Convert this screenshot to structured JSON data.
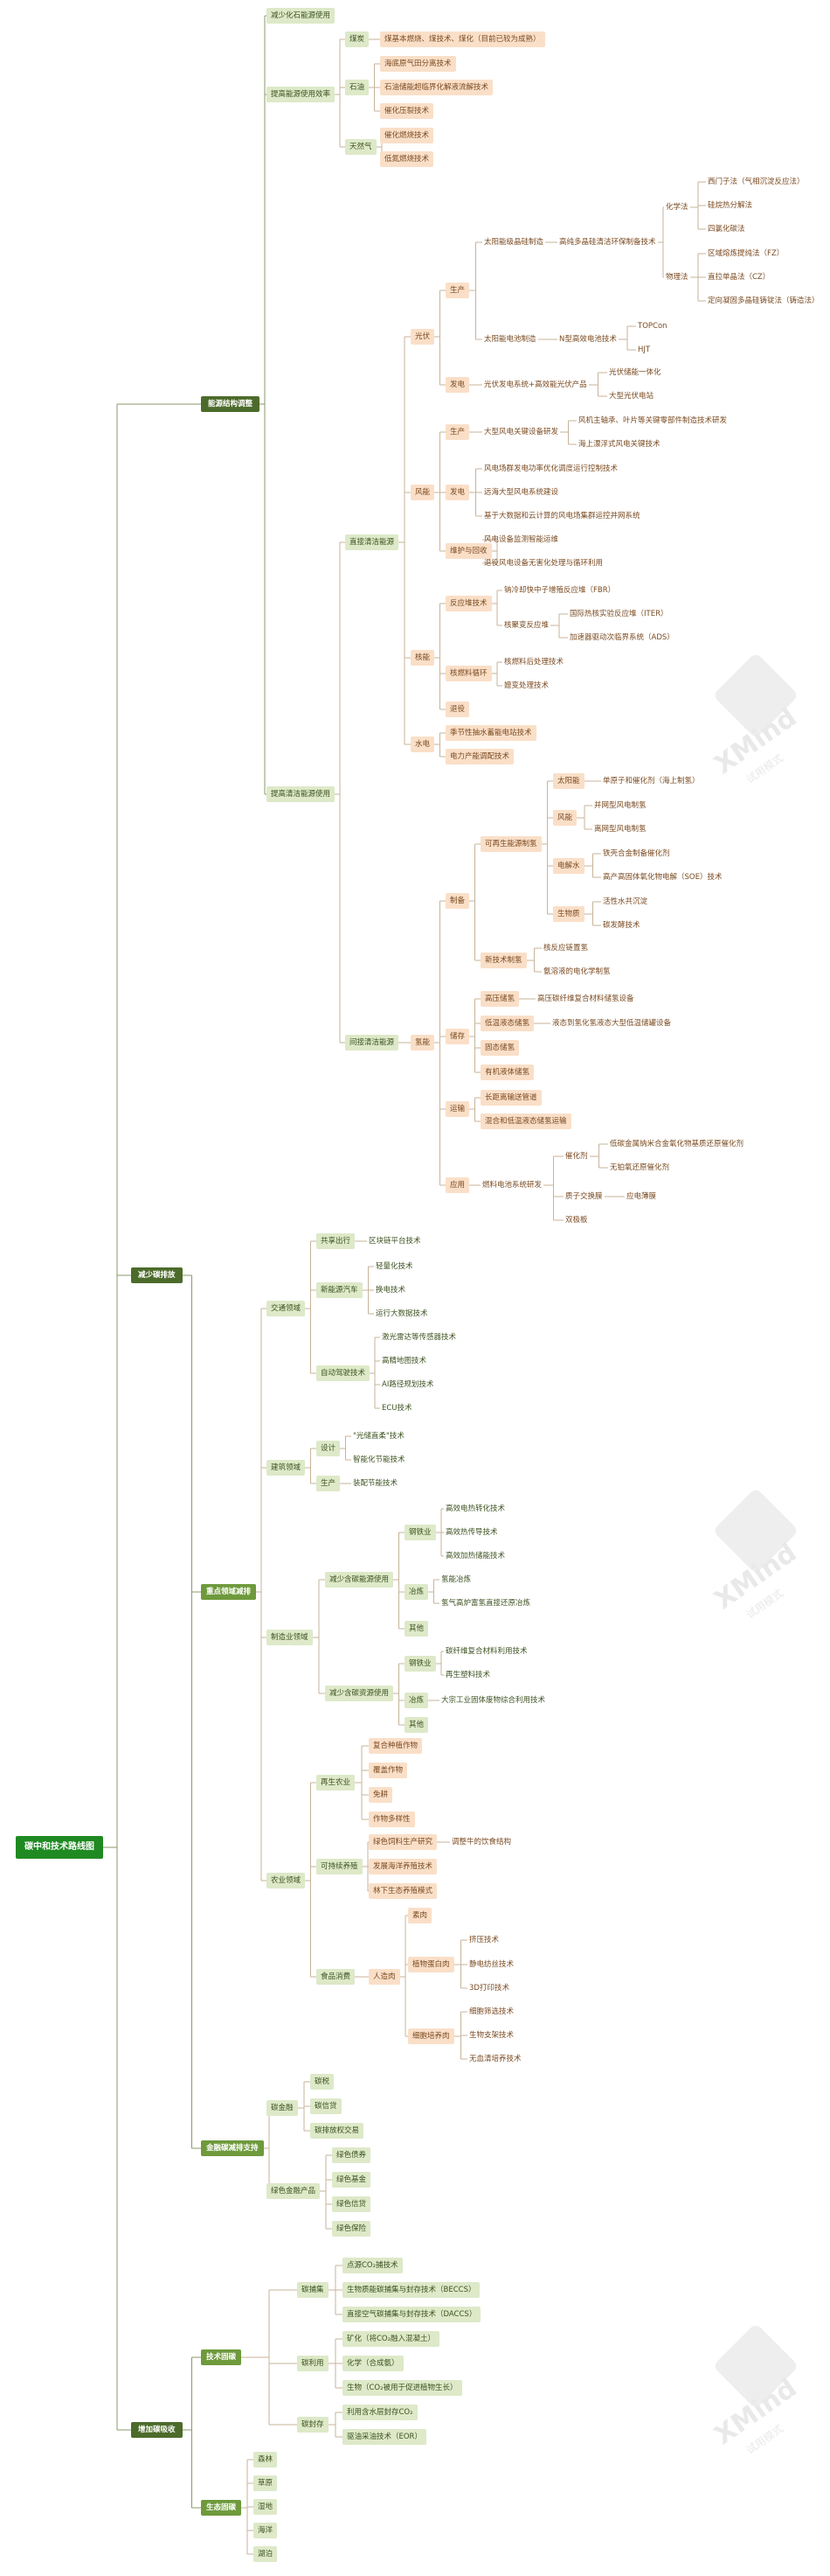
{
  "watermark": {
    "brand": "XMind",
    "sub": "试用模式"
  },
  "nodes": [
    {
      "id": "root",
      "text": "碳中和技术路线图",
      "lvl": 0
    },
    {
      "id": "A",
      "text": "能源结构调整",
      "lvl": 1,
      "parent": "root"
    },
    {
      "id": "B",
      "text": "减少碳排放",
      "lvl": 1,
      "parent": "root"
    },
    {
      "id": "C",
      "text": "增加碳吸收",
      "lvl": 1,
      "parent": "root"
    },
    {
      "id": "A1",
      "text": "减少化石能源使用",
      "parent": "A",
      "style": "box-green"
    },
    {
      "id": "A2",
      "text": "提高能源使用效率",
      "parent": "A",
      "style": "box-green"
    },
    {
      "id": "A2a",
      "text": "煤炭",
      "parent": "A2",
      "style": "box-green"
    },
    {
      "id": "A2a1",
      "text": "煤基本燃烧、煤技术、煤化（目前已较为成熟）",
      "parent": "A2a",
      "style": "box-orange"
    },
    {
      "id": "A2b",
      "text": "石油",
      "parent": "A2",
      "style": "box-green"
    },
    {
      "id": "A2b1",
      "text": "海底原气田分离技术",
      "parent": "A2b",
      "style": "box-orange"
    },
    {
      "id": "A2b2",
      "text": "石油储能超临界化解液流解技术",
      "parent": "A2b",
      "style": "box-orange"
    },
    {
      "id": "A2b3",
      "text": "催化压裂技术",
      "parent": "A2b",
      "style": "box-orange"
    },
    {
      "id": "A2c",
      "text": "天然气",
      "parent": "A2",
      "style": "box-green"
    },
    {
      "id": "A2c1",
      "text": "催化燃烧技术",
      "parent": "A2c",
      "style": "box-orange"
    },
    {
      "id": "A2c2",
      "text": "低氮燃烧技术",
      "parent": "A2c",
      "style": "box-orange"
    },
    {
      "id": "A3",
      "text": "提高清洁能源使用",
      "parent": "A",
      "style": "box-green"
    },
    {
      "id": "A3a",
      "text": "直接清洁能源",
      "parent": "A3",
      "style": "box-green"
    },
    {
      "id": "PV",
      "text": "光伏",
      "parent": "A3a",
      "style": "box-orange"
    },
    {
      "id": "PVa",
      "text": "生产",
      "parent": "PV",
      "style": "box-orange"
    },
    {
      "id": "PVa1",
      "text": "太阳能级晶硅制造",
      "parent": "PVa",
      "style": "plain"
    },
    {
      "id": "PVa1a",
      "text": "高纯多晶硅清洁环保制备技术",
      "parent": "PVa1",
      "style": "plain"
    },
    {
      "id": "PVx",
      "text": "化学法",
      "parent": "PVa1a",
      "style": "plain"
    },
    {
      "id": "PVx1",
      "text": "西门子法（气相沉淀反应法）",
      "parent": "PVx",
      "style": "plain"
    },
    {
      "id": "PVx2",
      "text": "硅烷热分解法",
      "parent": "PVx",
      "style": "plain"
    },
    {
      "id": "PVx3",
      "text": "四氯化碳法",
      "parent": "PVx",
      "style": "plain"
    },
    {
      "id": "PVy",
      "text": "物理法",
      "parent": "PVa1a",
      "style": "plain"
    },
    {
      "id": "PVy1",
      "text": "区域熔炼提纯法（FZ）",
      "parent": "PVy",
      "style": "plain"
    },
    {
      "id": "PVy2",
      "text": "直拉单晶法（CZ）",
      "parent": "PVy",
      "style": "plain"
    },
    {
      "id": "PVy3",
      "text": "定向凝固多晶硅铸锭法（铸造法）",
      "parent": "PVy",
      "style": "plain"
    },
    {
      "id": "PVa2",
      "text": "太阳能电池制造",
      "parent": "PVa",
      "style": "plain"
    },
    {
      "id": "PVa2a",
      "text": "N型高效电池技术",
      "parent": "PVa2",
      "style": "plain"
    },
    {
      "id": "PVa2a1",
      "text": "TOPCon",
      "parent": "PVa2a",
      "style": "plain"
    },
    {
      "id": "PVa2a2",
      "text": "HJT",
      "parent": "PVa2a",
      "style": "plain"
    },
    {
      "id": "PVb",
      "text": "发电",
      "parent": "PV",
      "style": "box-orange"
    },
    {
      "id": "PVb1",
      "text": "光伏发电系统+高效能光伏产品",
      "parent": "PVb",
      "style": "plain"
    },
    {
      "id": "PVb1a",
      "text": "光伏储能一体化",
      "parent": "PVb1",
      "style": "plain"
    },
    {
      "id": "PVb1b",
      "text": "大型光伏电站",
      "parent": "PVb1",
      "style": "plain"
    },
    {
      "id": "WD",
      "text": "风能",
      "parent": "A3a",
      "style": "box-orange"
    },
    {
      "id": "WDa",
      "text": "生产",
      "parent": "WD",
      "style": "box-orange"
    },
    {
      "id": "WDa1",
      "text": "大型风电关键设备研发",
      "parent": "WDa",
      "style": "plain"
    },
    {
      "id": "WDa1a",
      "text": "风机主轴承、叶片等关键零部件制造技术研发",
      "parent": "WDa1",
      "style": "plain"
    },
    {
      "id": "WDa1b",
      "text": "海上漂浮式风电关键技术",
      "parent": "WDa1",
      "style": "plain"
    },
    {
      "id": "WDb",
      "text": "发电",
      "parent": "WD",
      "style": "box-orange"
    },
    {
      "id": "WDb1",
      "text": "风电场群发电功率优化调度运行控制技术",
      "parent": "WDb",
      "style": "plain"
    },
    {
      "id": "WDb2",
      "text": "远海大型风电系统建设",
      "parent": "WDb",
      "style": "plain"
    },
    {
      "id": "WDb3",
      "text": "基于大数据和云计算的风电场集群运控并网系统",
      "parent": "WDb",
      "style": "plain"
    },
    {
      "id": "WDc",
      "text": "维护与回收",
      "parent": "WD",
      "style": "box-orange"
    },
    {
      "id": "WDc1",
      "text": "风电设备监测智能运维",
      "parent": "WDc",
      "style": "plain"
    },
    {
      "id": "WDc2",
      "text": "退役风电设备无害化处理与循环利用",
      "parent": "WDc",
      "style": "plain"
    },
    {
      "id": "NU",
      "text": "核能",
      "parent": "A3a",
      "style": "box-orange"
    },
    {
      "id": "NUa",
      "text": "反应堆技术",
      "parent": "NU",
      "style": "box-orange"
    },
    {
      "id": "NUa1",
      "text": "钠冷却快中子增殖反应堆（FBR）",
      "parent": "NUa",
      "style": "plain"
    },
    {
      "id": "NUa2",
      "text": "核聚变反应堆",
      "parent": "NUa",
      "style": "plain"
    },
    {
      "id": "NUa2a",
      "text": "国际热核实验反应堆（ITER）",
      "parent": "NUa2",
      "style": "plain"
    },
    {
      "id": "NUa2b",
      "text": "加速器驱动次临界系统（ADS）",
      "parent": "NUa2",
      "style": "plain"
    },
    {
      "id": "NUb",
      "text": "核燃料循环",
      "parent": "NU",
      "style": "box-orange"
    },
    {
      "id": "NUb1",
      "text": "核燃料后处理技术",
      "parent": "NUb",
      "style": "plain"
    },
    {
      "id": "NUb2",
      "text": "嬗变处理技术",
      "parent": "NUb",
      "style": "plain"
    },
    {
      "id": "NUc",
      "text": "退役",
      "parent": "NU",
      "style": "box-orange"
    },
    {
      "id": "HY",
      "text": "水电",
      "parent": "A3a",
      "style": "box-orange"
    },
    {
      "id": "HY1",
      "text": "季节性抽水蓄能电站技术",
      "parent": "HY",
      "style": "box-orange"
    },
    {
      "id": "HY2",
      "text": "电力产能调配技术",
      "parent": "HY",
      "style": "box-orange"
    },
    {
      "id": "A3b",
      "text": "间接清洁能源",
      "parent": "A3",
      "style": "box-green"
    },
    {
      "id": "H2",
      "text": "氢能",
      "parent": "A3b",
      "style": "box-orange"
    },
    {
      "id": "H2a",
      "text": "制备",
      "parent": "H2",
      "style": "box-orange"
    },
    {
      "id": "H2a1",
      "text": "可再生能源制氢",
      "parent": "H2a",
      "style": "box-orange"
    },
    {
      "id": "H2s",
      "text": "太阳能",
      "parent": "H2a1",
      "style": "box-orange"
    },
    {
      "id": "H2s1",
      "text": "单原子和催化剂（海上制氢）",
      "parent": "H2s",
      "style": "plain"
    },
    {
      "id": "H2w",
      "text": "风能",
      "parent": "H2a1",
      "style": "box-orange"
    },
    {
      "id": "H2w1",
      "text": "并网型风电制氢",
      "parent": "H2w",
      "style": "plain"
    },
    {
      "id": "H2w2",
      "text": "离网型风电制氢",
      "parent": "H2w",
      "style": "plain"
    },
    {
      "id": "H2e",
      "text": "电解水",
      "parent": "H2a1",
      "style": "box-orange"
    },
    {
      "id": "H2e1",
      "text": "铁壳合金制备催化剂",
      "parent": "H2e",
      "style": "plain"
    },
    {
      "id": "H2e2",
      "text": "高产高固体氧化物电解（SOE）技术",
      "parent": "H2e",
      "style": "plain"
    },
    {
      "id": "H2b",
      "text": "生物质",
      "parent": "H2a1",
      "style": "box-orange"
    },
    {
      "id": "H2b1",
      "text": "活性水共沉淀",
      "parent": "H2b",
      "style": "plain"
    },
    {
      "id": "H2b2",
      "text": "碳发酵技术",
      "parent": "H2b",
      "style": "plain"
    },
    {
      "id": "H2a2",
      "text": "新技术制氢",
      "parent": "H2a",
      "style": "box-orange"
    },
    {
      "id": "H2a2a",
      "text": "核反应链置氢",
      "parent": "H2a2",
      "style": "plain"
    },
    {
      "id": "H2a2b",
      "text": "氨溶液的电化学制氢",
      "parent": "H2a2",
      "style": "plain"
    },
    {
      "id": "H2c",
      "text": "储存",
      "parent": "H2",
      "style": "box-orange"
    },
    {
      "id": "H2c1",
      "text": "高压储氢",
      "parent": "H2c",
      "style": "box-orange"
    },
    {
      "id": "H2c1a",
      "text": "高压碳纤维复合材料储氢设备",
      "parent": "H2c1",
      "style": "plain"
    },
    {
      "id": "H2c2",
      "text": "低温液态储氢",
      "parent": "H2c",
      "style": "box-orange"
    },
    {
      "id": "H2c2a",
      "text": "液态到氢化氢液态大型低温储罐设备",
      "parent": "H2c2",
      "style": "plain"
    },
    {
      "id": "H2c3",
      "text": "固态储氢",
      "parent": "H2c",
      "style": "box-orange"
    },
    {
      "id": "H2c4",
      "text": "有机液体储氢",
      "parent": "H2c",
      "style": "box-orange"
    },
    {
      "id": "H2d",
      "text": "运输",
      "parent": "H2",
      "style": "box-orange"
    },
    {
      "id": "H2d1",
      "text": "长距离输送管道",
      "parent": "H2d",
      "style": "box-orange"
    },
    {
      "id": "H2d2",
      "text": "混合和低温液态储氢运输",
      "parent": "H2d",
      "style": "box-orange"
    },
    {
      "id": "H2f",
      "text": "应用",
      "parent": "H2",
      "style": "box-orange"
    },
    {
      "id": "H2f1",
      "text": "燃料电池系统研发",
      "parent": "H2f",
      "style": "plain"
    },
    {
      "id": "H2f1a",
      "text": "催化剂",
      "parent": "H2f1",
      "style": "plain"
    },
    {
      "id": "H2f1a1",
      "text": "低碳金属纳米合金氧化物基质还原催化剂",
      "parent": "H2f1a",
      "style": "plain"
    },
    {
      "id": "H2f1a2",
      "text": "无铂氧还原催化剂",
      "parent": "H2f1a",
      "style": "plain"
    },
    {
      "id": "H2f1b",
      "text": "质子交换膜",
      "parent": "H2f1",
      "style": "plain"
    },
    {
      "id": "H2f1b1",
      "text": "应电薄膜",
      "parent": "H2f1b",
      "style": "plain"
    },
    {
      "id": "H2f1c",
      "text": "双极板",
      "parent": "H2f1",
      "style": "plain"
    },
    {
      "id": "B1",
      "text": "重点领域减排",
      "lvl": 2,
      "parent": "B"
    },
    {
      "id": "T",
      "text": "交通领域",
      "parent": "B1",
      "style": "box-green"
    },
    {
      "id": "Ta",
      "text": "共享出行",
      "parent": "T",
      "style": "box-green"
    },
    {
      "id": "Ta1",
      "text": "区块链平台技术",
      "parent": "Ta",
      "style": "plain-green"
    },
    {
      "id": "Tb",
      "text": "新能源汽车",
      "parent": "T",
      "style": "box-green"
    },
    {
      "id": "Tb1",
      "text": "轻量化技术",
      "parent": "Tb",
      "style": "plain-green"
    },
    {
      "id": "Tb2",
      "text": "换电技术",
      "parent": "Tb",
      "style": "plain-green"
    },
    {
      "id": "Tb3",
      "text": "运行大数据技术",
      "parent": "Tb",
      "style": "plain-green"
    },
    {
      "id": "Tc",
      "text": "自动驾驶技术",
      "parent": "T",
      "style": "box-green"
    },
    {
      "id": "Tc1",
      "text": "激光雷达等传感器技术",
      "parent": "Tc",
      "style": "plain-green"
    },
    {
      "id": "Tc2",
      "text": "高精地图技术",
      "parent": "Tc",
      "style": "plain-green"
    },
    {
      "id": "Tc3",
      "text": "AI路径规划技术",
      "parent": "Tc",
      "style": "plain-green"
    },
    {
      "id": "Tc4",
      "text": "ECU技术",
      "parent": "Tc",
      "style": "plain-green"
    },
    {
      "id": "BD",
      "text": "建筑领域",
      "parent": "B1",
      "style": "box-green"
    },
    {
      "id": "BDa",
      "text": "设计",
      "parent": "BD",
      "style": "box-green"
    },
    {
      "id": "BDa1",
      "text": "\"光储直柔\"技术",
      "parent": "BDa",
      "style": "plain-green"
    },
    {
      "id": "BDa2",
      "text": "智能化节能技术",
      "parent": "BDa",
      "style": "plain-green"
    },
    {
      "id": "BDb",
      "text": "生产",
      "parent": "BD",
      "style": "box-green"
    },
    {
      "id": "BDb1",
      "text": "装配节能技术",
      "parent": "BDb",
      "style": "plain-green"
    },
    {
      "id": "MF",
      "text": "制造业领域",
      "parent": "B1",
      "style": "box-green"
    },
    {
      "id": "MFa",
      "text": "减少含碳能源使用",
      "parent": "MF",
      "style": "box-green"
    },
    {
      "id": "MFa1",
      "text": "钢铁业",
      "parent": "MFa",
      "style": "box-green"
    },
    {
      "id": "MFa1a",
      "text": "高效电热转化技术",
      "parent": "MFa1",
      "style": "plain-green"
    },
    {
      "id": "MFa1b",
      "text": "高效热传导技术",
      "parent": "MFa1",
      "style": "plain-green"
    },
    {
      "id": "MFa1c",
      "text": "高效加热储能技术",
      "parent": "MFa1",
      "style": "plain-green"
    },
    {
      "id": "MFa2",
      "text": "冶炼",
      "parent": "MFa",
      "style": "box-green"
    },
    {
      "id": "MFa2a",
      "text": "氢能冶炼",
      "parent": "MFa2",
      "style": "plain-green"
    },
    {
      "id": "MFa2b",
      "text": "氢气高炉富氢直接还原冶炼",
      "parent": "MFa2",
      "style": "plain-green"
    },
    {
      "id": "MFa3",
      "text": "其他",
      "parent": "MFa",
      "style": "box-green"
    },
    {
      "id": "MFb",
      "text": "减少含碳资源使用",
      "parent": "MF",
      "style": "box-green"
    },
    {
      "id": "MFb1",
      "text": "钢铁业",
      "parent": "MFb",
      "style": "box-green"
    },
    {
      "id": "MFb1a",
      "text": "碳纤维复合材料利用技术",
      "parent": "MFb1",
      "style": "plain-green"
    },
    {
      "id": "MFb1b",
      "text": "再生塑料技术",
      "parent": "MFb1",
      "style": "plain-green"
    },
    {
      "id": "MFb2",
      "text": "冶炼",
      "parent": "MFb",
      "style": "box-green"
    },
    {
      "id": "MFb2a",
      "text": "大宗工业固体废物综合利用技术",
      "parent": "MFb2",
      "style": "plain-green"
    },
    {
      "id": "MFb3",
      "text": "其他",
      "parent": "MFb",
      "style": "box-green"
    },
    {
      "id": "AG",
      "text": "农业领域",
      "parent": "B1",
      "style": "box-green"
    },
    {
      "id": "AGa",
      "text": "再生农业",
      "parent": "AG",
      "style": "box-green"
    },
    {
      "id": "AGa1",
      "text": "复合种植作物",
      "parent": "AGa",
      "style": "box-orange"
    },
    {
      "id": "AGa2",
      "text": "覆盖作物",
      "parent": "AGa",
      "style": "box-orange"
    },
    {
      "id": "AGa3",
      "text": "免耕",
      "parent": "AGa",
      "style": "box-orange"
    },
    {
      "id": "AGa4",
      "text": "作物多样性",
      "parent": "AGa",
      "style": "box-orange"
    },
    {
      "id": "AGb",
      "text": "可持续养殖",
      "parent": "AG",
      "style": "box-green"
    },
    {
      "id": "AGb1",
      "text": "绿色饲料生产研究",
      "parent": "AGb",
      "style": "box-orange"
    },
    {
      "id": "AGb1a",
      "text": "调整牛的饮食结构",
      "parent": "AGb1",
      "style": "plain"
    },
    {
      "id": "AGb2",
      "text": "发展海洋养殖技术",
      "parent": "AGb",
      "style": "box-orange"
    },
    {
      "id": "AGb3",
      "text": "林下生态养殖模式",
      "parent": "AGb",
      "style": "box-orange"
    },
    {
      "id": "AGc",
      "text": "食品消费",
      "parent": "AG",
      "style": "box-green"
    },
    {
      "id": "AGc1",
      "text": "人造肉",
      "parent": "AGc",
      "style": "box-orange"
    },
    {
      "id": "AGc1a",
      "text": "素肉",
      "parent": "AGc1",
      "style": "box-orange"
    },
    {
      "id": "AGc1b",
      "text": "植物蛋白肉",
      "parent": "AGc1",
      "style": "box-orange"
    },
    {
      "id": "AGc1b1",
      "text": "挤压技术",
      "parent": "AGc1b",
      "style": "plain"
    },
    {
      "id": "AGc1b2",
      "text": "静电纺丝技术",
      "parent": "AGc1b",
      "style": "plain"
    },
    {
      "id": "AGc1b3",
      "text": "3D打印技术",
      "parent": "AGc1b",
      "style": "plain"
    },
    {
      "id": "AGc1c",
      "text": "细胞培养肉",
      "parent": "AGc1",
      "style": "box-orange"
    },
    {
      "id": "AGc1c1",
      "text": "细胞筛选技术",
      "parent": "AGc1c",
      "style": "plain"
    },
    {
      "id": "AGc1c2",
      "text": "生物支架技术",
      "parent": "AGc1c",
      "style": "plain"
    },
    {
      "id": "AGc1c3",
      "text": "无血清培养技术",
      "parent": "AGc1c",
      "style": "plain"
    },
    {
      "id": "B2",
      "text": "金融碳减排支持",
      "lvl": 2,
      "parent": "B"
    },
    {
      "id": "B2a",
      "text": "碳金融",
      "parent": "B2",
      "style": "box-green"
    },
    {
      "id": "B2a1",
      "text": "碳税",
      "parent": "B2a",
      "style": "box-green"
    },
    {
      "id": "B2a2",
      "text": "碳信贷",
      "parent": "B2a",
      "style": "box-green"
    },
    {
      "id": "B2a3",
      "text": "碳排放权交易",
      "parent": "B2a",
      "style": "box-green"
    },
    {
      "id": "B2b",
      "text": "绿色金融产品",
      "parent": "B2",
      "style": "box-green"
    },
    {
      "id": "B2b1",
      "text": "绿色债券",
      "parent": "B2b",
      "style": "box-green"
    },
    {
      "id": "B2b2",
      "text": "绿色基金",
      "parent": "B2b",
      "style": "box-green"
    },
    {
      "id": "B2b3",
      "text": "绿色信贷",
      "parent": "B2b",
      "style": "box-green"
    },
    {
      "id": "B2b4",
      "text": "绿色保险",
      "parent": "B2b",
      "style": "box-green"
    },
    {
      "id": "C1",
      "text": "技术固碳",
      "lvl": 2,
      "parent": "C"
    },
    {
      "id": "C1a",
      "text": "碳捕集",
      "parent": "C1",
      "style": "box-green"
    },
    {
      "id": "C1a1",
      "text": "点源CO₂捕技术",
      "parent": "C1a",
      "style": "box-green"
    },
    {
      "id": "C1a2",
      "text": "生物质能碳捕集与封存技术（BECCS）",
      "parent": "C1a",
      "style": "box-green"
    },
    {
      "id": "C1a3",
      "text": "直接空气碳捕集与封存技术（DACCS）",
      "parent": "C1a",
      "style": "box-green"
    },
    {
      "id": "C1b",
      "text": "碳利用",
      "parent": "C1",
      "style": "box-green"
    },
    {
      "id": "C1b1",
      "text": "矿化（将CO₂融入混凝土）",
      "parent": "C1b",
      "style": "box-green"
    },
    {
      "id": "C1b2",
      "text": "化学（合成氨）",
      "parent": "C1b",
      "style": "box-green"
    },
    {
      "id": "C1b3",
      "text": "生物（CO₂被用于促进植物生长）",
      "parent": "C1b",
      "style": "box-green"
    },
    {
      "id": "C1c",
      "text": "碳封存",
      "parent": "C1",
      "style": "box-green"
    },
    {
      "id": "C1c1",
      "text": "利用含水层封存CO₂",
      "parent": "C1c",
      "style": "box-green"
    },
    {
      "id": "C1c2",
      "text": "驱油采油技术（EOR）",
      "parent": "C1c",
      "style": "box-green"
    },
    {
      "id": "C2",
      "text": "生态固碳",
      "lvl": 2,
      "parent": "C"
    },
    {
      "id": "C2a",
      "text": "森林",
      "parent": "C2",
      "style": "box-green"
    },
    {
      "id": "C2b",
      "text": "草原",
      "parent": "C2",
      "style": "box-green"
    },
    {
      "id": "C2c",
      "text": "湿地",
      "parent": "C2",
      "style": "box-green"
    },
    {
      "id": "C2d",
      "text": "海洋",
      "parent": "C2",
      "style": "box-green"
    },
    {
      "id": "C2e",
      "text": "湖泊",
      "parent": "C2",
      "style": "box-green"
    }
  ]
}
